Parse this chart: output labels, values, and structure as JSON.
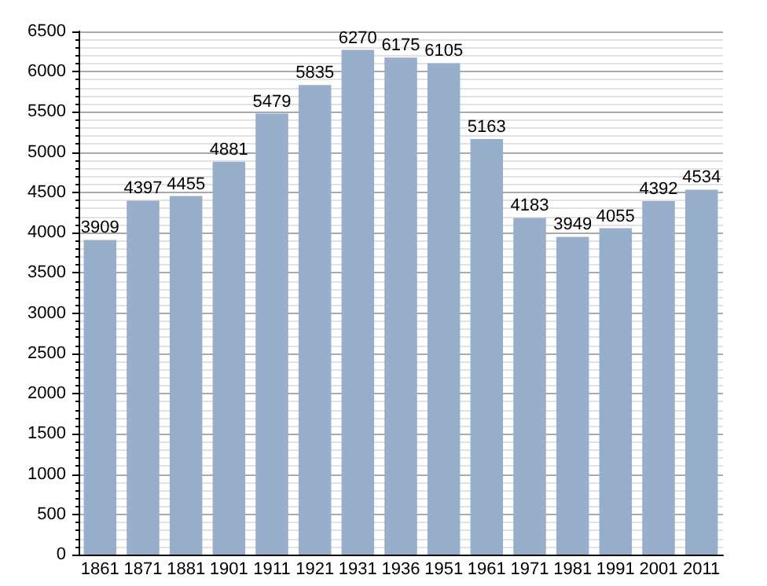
{
  "chart_data": {
    "type": "bar",
    "categories": [
      "1861",
      "1871",
      "1881",
      "1901",
      "1911",
      "1921",
      "1931",
      "1936",
      "1951",
      "1961",
      "1971",
      "1981",
      "1991",
      "2001",
      "2011"
    ],
    "values": [
      3909,
      4397,
      4455,
      4881,
      5479,
      5835,
      6270,
      6175,
      6105,
      5163,
      4183,
      3949,
      4055,
      4392,
      4534
    ],
    "color": "#98afcb",
    "ylim": [
      0,
      6500
    ],
    "yticks": [
      0,
      500,
      1000,
      1500,
      2000,
      2500,
      3000,
      3500,
      4000,
      4500,
      5000,
      5500,
      6000,
      6500
    ],
    "grid": "y",
    "data_labels": true
  }
}
